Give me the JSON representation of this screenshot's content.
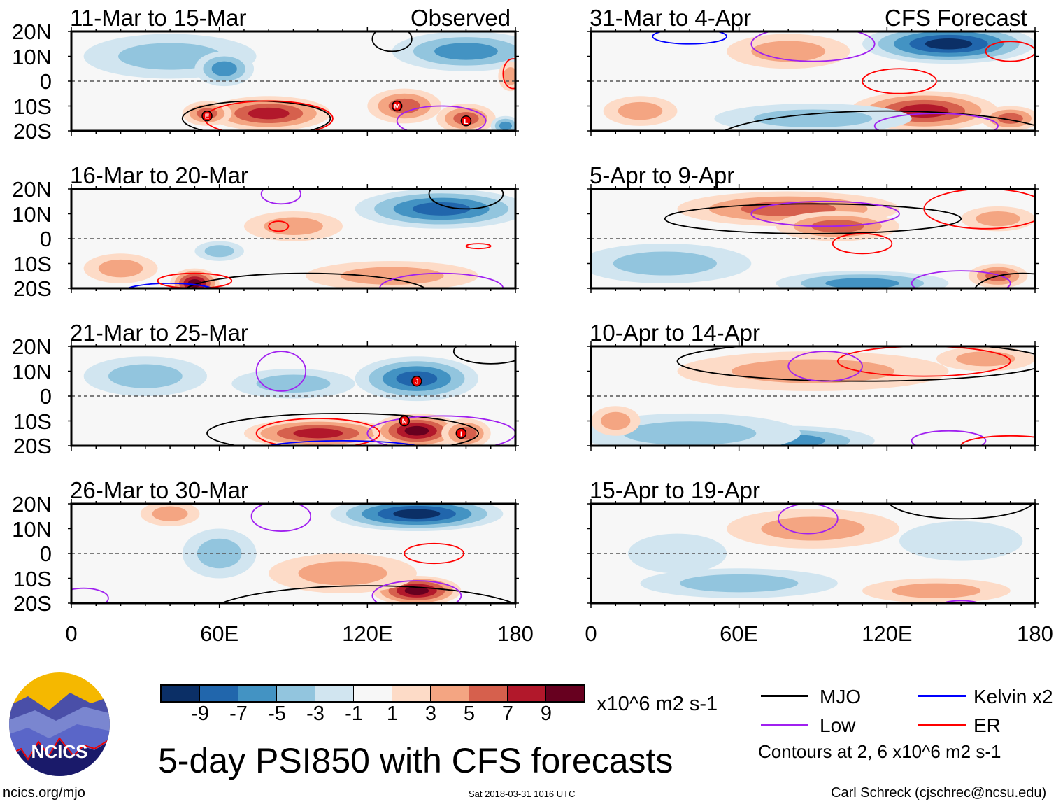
{
  "title": "5-day PSI850 with CFS forecasts",
  "units": "x10^6 m2 s-1",
  "logo_text": "NCICS",
  "site": "ncics.org/mjo",
  "timestamp": "Sat 2018-03-31 1016 UTC",
  "author": "Carl Schreck (cjschrec@ncsu.edu)",
  "contours_note": "Contours at 2, 6 x10^6 m2 s-1",
  "legend": [
    {
      "label": "MJO",
      "color": "#000000"
    },
    {
      "label": "Kelvin x2",
      "color": "#0000ff"
    },
    {
      "label": "Low",
      "color": "#a020f0"
    },
    {
      "label": "ER",
      "color": "#ff0000"
    }
  ],
  "colorbar": {
    "colors": [
      "#0b2f66",
      "#2166ac",
      "#4393c3",
      "#92c5de",
      "#d1e5f0",
      "#f7f7f7",
      "#fddbc7",
      "#f4a582",
      "#d6604d",
      "#b2182b",
      "#67001f"
    ],
    "labels": [
      "-9",
      "-7",
      "-5",
      "-3",
      "-1",
      "1",
      "3",
      "5",
      "7",
      "9"
    ]
  },
  "column_labels": {
    "left": "Observed",
    "right": "CFS Forecast"
  },
  "lat_labels": [
    "20N",
    "10N",
    "0",
    "10S",
    "20S"
  ],
  "lon_labels": [
    "0",
    "60E",
    "120E",
    "180"
  ],
  "chart_data": {
    "type": "heatmap",
    "variable": "PSI850 anomaly",
    "lon_range": [
      0,
      180
    ],
    "lat_range": [
      -20,
      20
    ],
    "panels": [
      {
        "title": "11-Mar to 15-Mar",
        "source": "Observed",
        "anomalies": [
          [
            40,
            10,
            -2,
            35,
            9
          ],
          [
            62,
            5,
            -5,
            12,
            7
          ],
          [
            80,
            -13,
            7,
            25,
            7
          ],
          [
            55,
            -13,
            5,
            10,
            5
          ],
          [
            135,
            -10,
            4,
            15,
            7
          ],
          [
            160,
            -15,
            5,
            12,
            6
          ],
          [
            160,
            12,
            -5,
            30,
            8
          ],
          [
            176,
            -18,
            -4,
            6,
            4
          ],
          [
            178,
            2,
            3,
            5,
            6
          ]
        ],
        "contours": [
          [
            "MJO",
            130,
            17,
            8,
            5
          ],
          [
            "MJO",
            75,
            -15,
            30,
            7
          ],
          [
            "ER",
            80,
            -15,
            26,
            7
          ],
          [
            "Low",
            150,
            -16,
            18,
            6
          ],
          [
            "ER",
            179,
            3,
            4,
            6
          ]
        ],
        "storms": [
          [
            "E",
            55,
            -14
          ],
          [
            "M",
            132,
            -10
          ],
          [
            "L",
            160,
            -16
          ]
        ]
      },
      {
        "title": "16-Mar to 20-Mar",
        "source": "Observed",
        "anomalies": [
          [
            150,
            12,
            -6,
            35,
            8
          ],
          [
            50,
            -18,
            9,
            10,
            6
          ],
          [
            20,
            -12,
            3,
            15,
            6
          ],
          [
            90,
            5,
            2,
            20,
            6
          ],
          [
            130,
            -15,
            2,
            35,
            6
          ],
          [
            60,
            -5,
            -2,
            10,
            4
          ]
        ],
        "contours": [
          [
            "MJO",
            160,
            18,
            15,
            6
          ],
          [
            "MJO",
            95,
            -22,
            50,
            8
          ],
          [
            "Kelvin x2",
            40,
            -22,
            20,
            4
          ],
          [
            "ER",
            50,
            -17,
            15,
            3
          ],
          [
            "Low",
            150,
            -20,
            25,
            6
          ],
          [
            "Low",
            85,
            18,
            8,
            4
          ],
          [
            "ER",
            84,
            5,
            4,
            2
          ],
          [
            "ER",
            165,
            -3,
            5,
            1
          ]
        ],
        "storms": []
      },
      {
        "title": "21-Mar to 25-Mar",
        "source": "Observed",
        "anomalies": [
          [
            140,
            7,
            -7,
            25,
            9
          ],
          [
            100,
            -15,
            7,
            30,
            6
          ],
          [
            140,
            -14,
            9,
            18,
            7
          ],
          [
            160,
            -15,
            5,
            10,
            6
          ],
          [
            30,
            8,
            -2,
            25,
            8
          ],
          [
            90,
            5,
            -2,
            25,
            6
          ]
        ],
        "contours": [
          [
            "MJO",
            110,
            -15,
            55,
            8
          ],
          [
            "ER",
            100,
            -15,
            25,
            6
          ],
          [
            "Kelvin x2",
            110,
            -22,
            35,
            4
          ],
          [
            "Low",
            150,
            -15,
            30,
            7
          ],
          [
            "Low",
            85,
            10,
            10,
            8
          ],
          [
            "MJO",
            170,
            18,
            15,
            5
          ]
        ],
        "storms": [
          [
            "J",
            140,
            6
          ],
          [
            "N",
            135,
            -10
          ],
          [
            "I",
            158,
            -15
          ]
        ]
      },
      {
        "title": "26-Mar to 30-Mar",
        "source": "Observed",
        "anomalies": [
          [
            140,
            16,
            -9,
            35,
            7
          ],
          [
            140,
            -15,
            9,
            18,
            6
          ],
          [
            110,
            -8,
            3,
            30,
            8
          ],
          [
            60,
            0,
            -2,
            15,
            10
          ],
          [
            40,
            16,
            3,
            12,
            5
          ]
        ],
        "contours": [
          [
            "MJO",
            120,
            -25,
            65,
            12
          ],
          [
            "Low",
            140,
            -17,
            18,
            6
          ],
          [
            "ER",
            147,
            0,
            12,
            4
          ],
          [
            "Low",
            85,
            15,
            12,
            6
          ],
          [
            "Low",
            5,
            -18,
            10,
            4
          ]
        ],
        "storms": []
      },
      {
        "title": "31-Mar to 4-Apr",
        "source": "CFS Forecast",
        "anomalies": [
          [
            145,
            15,
            -9,
            35,
            8
          ],
          [
            135,
            -12,
            7,
            30,
            8
          ],
          [
            80,
            12,
            2,
            25,
            7
          ],
          [
            170,
            -15,
            5,
            12,
            5
          ],
          [
            90,
            -15,
            -2,
            40,
            6
          ],
          [
            20,
            -12,
            3,
            15,
            6
          ]
        ],
        "contours": [
          [
            "MJO",
            120,
            -24,
            70,
            12
          ],
          [
            "ER",
            125,
            0,
            15,
            5
          ],
          [
            "Low",
            90,
            15,
            25,
            7
          ],
          [
            "Kelvin x2",
            40,
            18,
            15,
            3
          ],
          [
            "ER",
            170,
            12,
            10,
            4
          ],
          [
            "Low",
            140,
            -18,
            25,
            5
          ]
        ],
        "storms": []
      },
      {
        "title": "5-Apr to 9-Apr",
        "source": "CFS Forecast",
        "anomalies": [
          [
            80,
            12,
            5,
            45,
            7
          ],
          [
            100,
            5,
            4,
            25,
            6
          ],
          [
            165,
            8,
            3,
            15,
            5
          ],
          [
            110,
            -18,
            -5,
            35,
            5
          ],
          [
            30,
            -10,
            -2,
            35,
            8
          ],
          [
            165,
            -15,
            4,
            12,
            5
          ]
        ],
        "contours": [
          [
            "MJO",
            90,
            8,
            60,
            6
          ],
          [
            "Low",
            95,
            10,
            30,
            5
          ],
          [
            "ER",
            110,
            -2,
            12,
            4
          ],
          [
            "ER",
            160,
            12,
            25,
            8
          ],
          [
            "Low",
            150,
            -18,
            20,
            5
          ],
          [
            "MJO",
            175,
            -22,
            20,
            8
          ]
        ],
        "storms": []
      },
      {
        "title": "10-Apr to 14-Apr",
        "source": "CFS Forecast",
        "anomalies": [
          [
            90,
            10,
            3,
            55,
            8
          ],
          [
            80,
            -18,
            -5,
            35,
            6
          ],
          [
            40,
            -15,
            -2,
            45,
            8
          ],
          [
            10,
            -10,
            3,
            10,
            6
          ],
          [
            160,
            15,
            3,
            20,
            5
          ]
        ],
        "contours": [
          [
            "MJO",
            110,
            14,
            75,
            8
          ],
          [
            "ER",
            135,
            14,
            35,
            6
          ],
          [
            "Low",
            95,
            12,
            15,
            6
          ],
          [
            "Low",
            145,
            -18,
            15,
            4
          ],
          [
            "ER",
            170,
            -20,
            20,
            4
          ]
        ],
        "storms": []
      },
      {
        "title": "15-Apr to 19-Apr",
        "source": "CFS Forecast",
        "anomalies": [
          [
            90,
            10,
            3,
            35,
            8
          ],
          [
            60,
            -12,
            -2,
            40,
            6
          ],
          [
            150,
            5,
            -1,
            25,
            8
          ],
          [
            35,
            0,
            -1,
            20,
            8
          ],
          [
            140,
            -15,
            2,
            30,
            5
          ]
        ],
        "contours": [
          [
            "MJO",
            150,
            22,
            30,
            8
          ],
          [
            "Low",
            88,
            14,
            12,
            6
          ],
          [
            "Low",
            150,
            -22,
            10,
            3
          ]
        ],
        "storms": []
      }
    ]
  }
}
